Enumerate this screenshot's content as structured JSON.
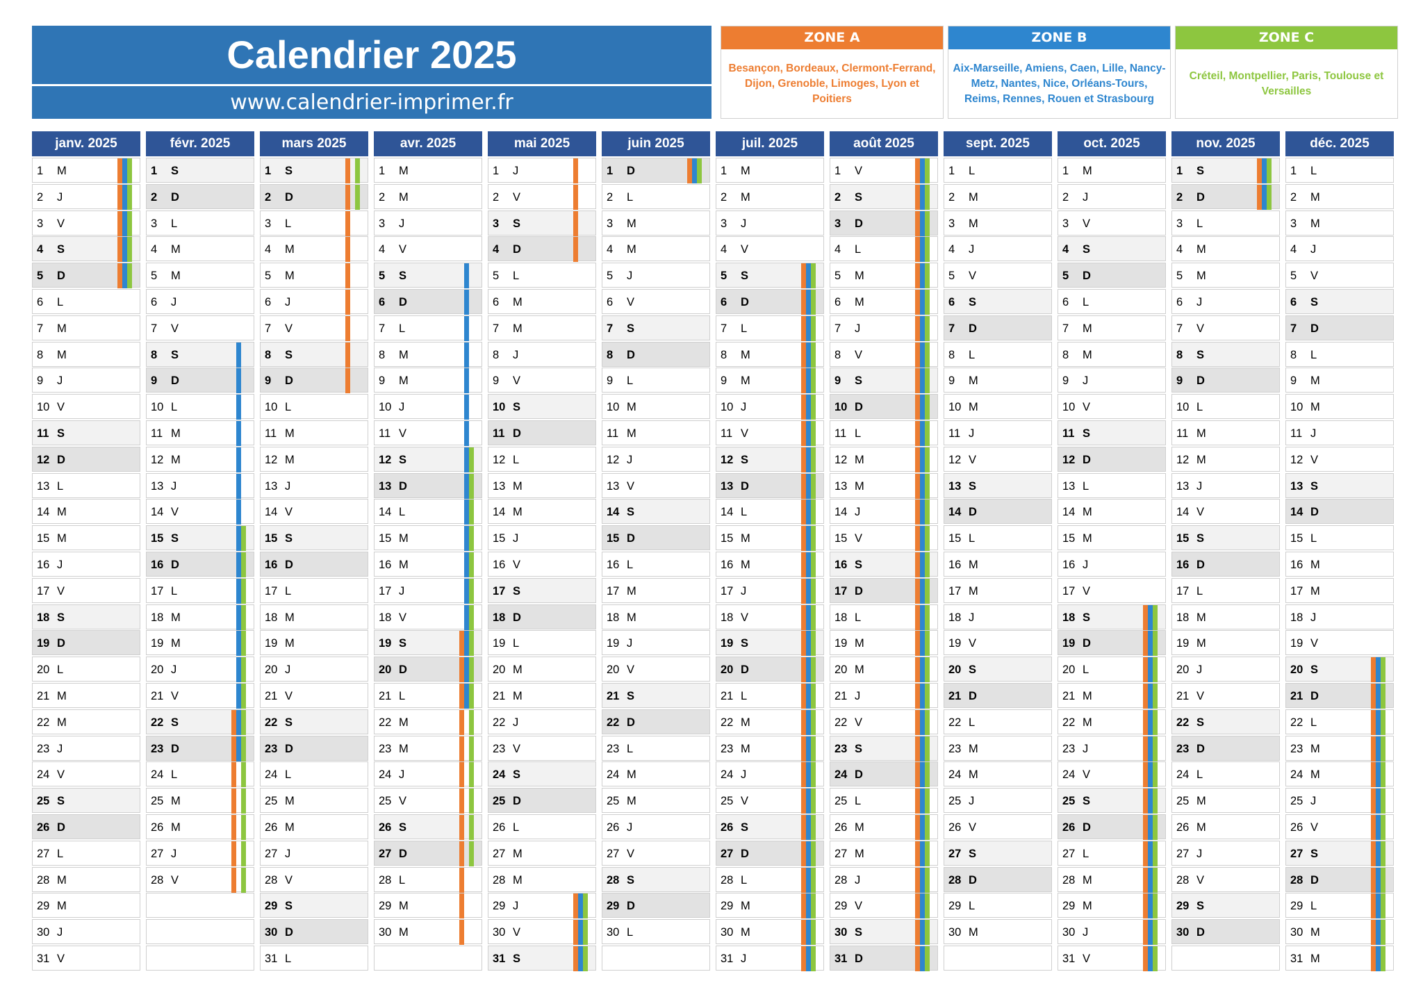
{
  "title": "Calendrier 2025",
  "website": "www.calendrier-imprimer.fr",
  "colors": {
    "zone_a": "#ed7d31",
    "zone_b": "#2e86cf",
    "zone_c": "#8dc63f",
    "header_title": "#2f75b5",
    "month_header": "#2f5597"
  },
  "zones": [
    {
      "name": "ZONE A",
      "cities": "Besançon, Bordeaux, Clermont-Ferrand, Dijon, Grenoble, Limoges, Lyon et Poitiers"
    },
    {
      "name": "ZONE B",
      "cities": "Aix-Marseille, Amiens, Caen, Lille, Nancy-Metz, Nantes, Nice, Orléans-Tours, Reims, Rennes, Rouen et Strasbourg"
    },
    {
      "name": "ZONE C",
      "cities": "Créteil, Montpellier, Paris, Toulouse et Versailles"
    }
  ],
  "months": [
    {
      "name": "janv. 2025",
      "days": 31,
      "first": "M",
      "vac": {
        "A": [
          [
            1,
            5
          ]
        ],
        "B": [
          [
            1,
            5
          ]
        ],
        "C": [
          [
            1,
            5
          ]
        ]
      }
    },
    {
      "name": "févr. 2025",
      "days": 28,
      "first": "S",
      "vac": {
        "A": [
          [
            22,
            28
          ]
        ],
        "B": [
          [
            8,
            23
          ]
        ],
        "C": [
          [
            15,
            28
          ]
        ]
      }
    },
    {
      "name": "mars 2025",
      "days": 31,
      "first": "S",
      "vac": {
        "A": [
          [
            1,
            9
          ]
        ],
        "B": [],
        "C": [
          [
            1,
            2
          ]
        ]
      }
    },
    {
      "name": "avr. 2025",
      "days": 30,
      "first": "M",
      "vac": {
        "A": [
          [
            19,
            30
          ]
        ],
        "B": [
          [
            5,
            21
          ]
        ],
        "C": [
          [
            12,
            27
          ]
        ]
      }
    },
    {
      "name": "mai 2025",
      "days": 31,
      "first": "J",
      "vac": {
        "A": [
          [
            1,
            4
          ],
          [
            29,
            31
          ]
        ],
        "B": [
          [
            29,
            31
          ]
        ],
        "C": [
          [
            29,
            31
          ]
        ]
      }
    },
    {
      "name": "juin 2025",
      "days": 30,
      "first": "D",
      "vac": {
        "A": [
          [
            1,
            1
          ]
        ],
        "B": [
          [
            1,
            1
          ]
        ],
        "C": [
          [
            1,
            1
          ]
        ]
      }
    },
    {
      "name": "juil. 2025",
      "days": 31,
      "first": "M",
      "vac": {
        "A": [
          [
            5,
            31
          ]
        ],
        "B": [
          [
            5,
            31
          ]
        ],
        "C": [
          [
            5,
            31
          ]
        ]
      }
    },
    {
      "name": "août 2025",
      "days": 31,
      "first": "V",
      "vac": {
        "A": [
          [
            1,
            31
          ]
        ],
        "B": [
          [
            1,
            31
          ]
        ],
        "C": [
          [
            1,
            31
          ]
        ]
      }
    },
    {
      "name": "sept. 2025",
      "days": 30,
      "first": "L",
      "vac": {
        "A": [],
        "B": [],
        "C": []
      }
    },
    {
      "name": "oct. 2025",
      "days": 31,
      "first": "M",
      "vac": {
        "A": [
          [
            18,
            31
          ]
        ],
        "B": [
          [
            18,
            31
          ]
        ],
        "C": [
          [
            18,
            31
          ]
        ]
      }
    },
    {
      "name": "nov. 2025",
      "days": 30,
      "first": "S",
      "vac": {
        "A": [
          [
            1,
            2
          ]
        ],
        "B": [
          [
            1,
            2
          ]
        ],
        "C": [
          [
            1,
            2
          ]
        ]
      }
    },
    {
      "name": "déc. 2025",
      "days": 31,
      "first": "L",
      "vac": {
        "A": [
          [
            20,
            31
          ]
        ],
        "B": [
          [
            20,
            31
          ]
        ],
        "C": [
          [
            20,
            31
          ]
        ]
      }
    }
  ],
  "weekday_letters": [
    "L",
    "M",
    "M",
    "J",
    "V",
    "S",
    "D"
  ]
}
